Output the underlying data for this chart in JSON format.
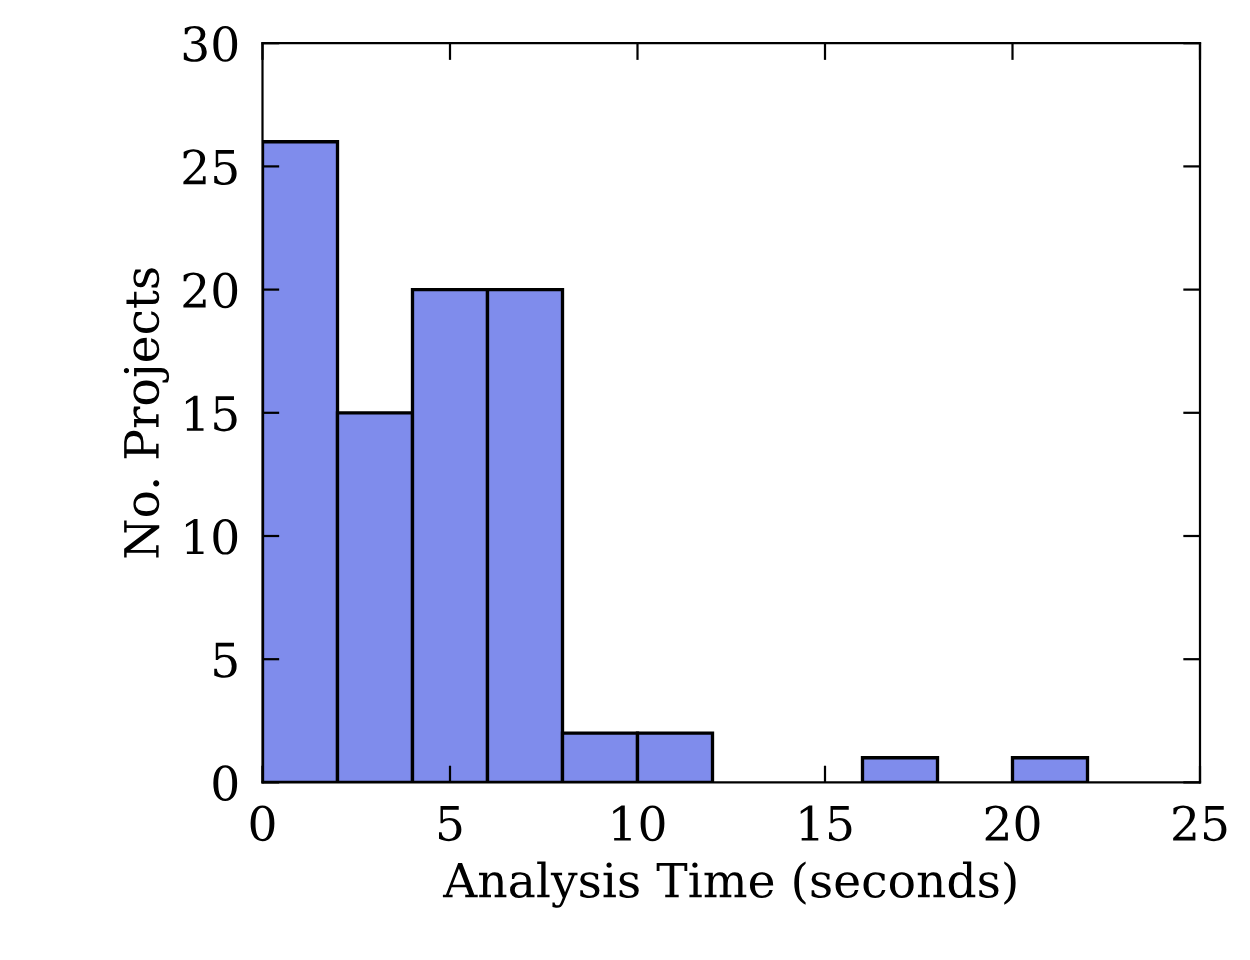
{
  "chart_data": {
    "type": "histogram",
    "xlabel": "Analysis Time (seconds)",
    "ylabel": "No. Projects",
    "bins": [
      0,
      2,
      4,
      6,
      8,
      10,
      12,
      14,
      16,
      18,
      20,
      22
    ],
    "values": [
      26,
      15,
      20,
      20,
      2,
      2,
      0,
      0,
      1,
      0,
      1
    ],
    "color": "#7f8cec",
    "xlim": [
      0,
      25
    ],
    "ylim": [
      0,
      30
    ],
    "xticks": [
      0,
      5,
      10,
      15,
      20,
      25
    ],
    "yticks": [
      0,
      5,
      10,
      15,
      20,
      25,
      30
    ],
    "grid": false
  }
}
